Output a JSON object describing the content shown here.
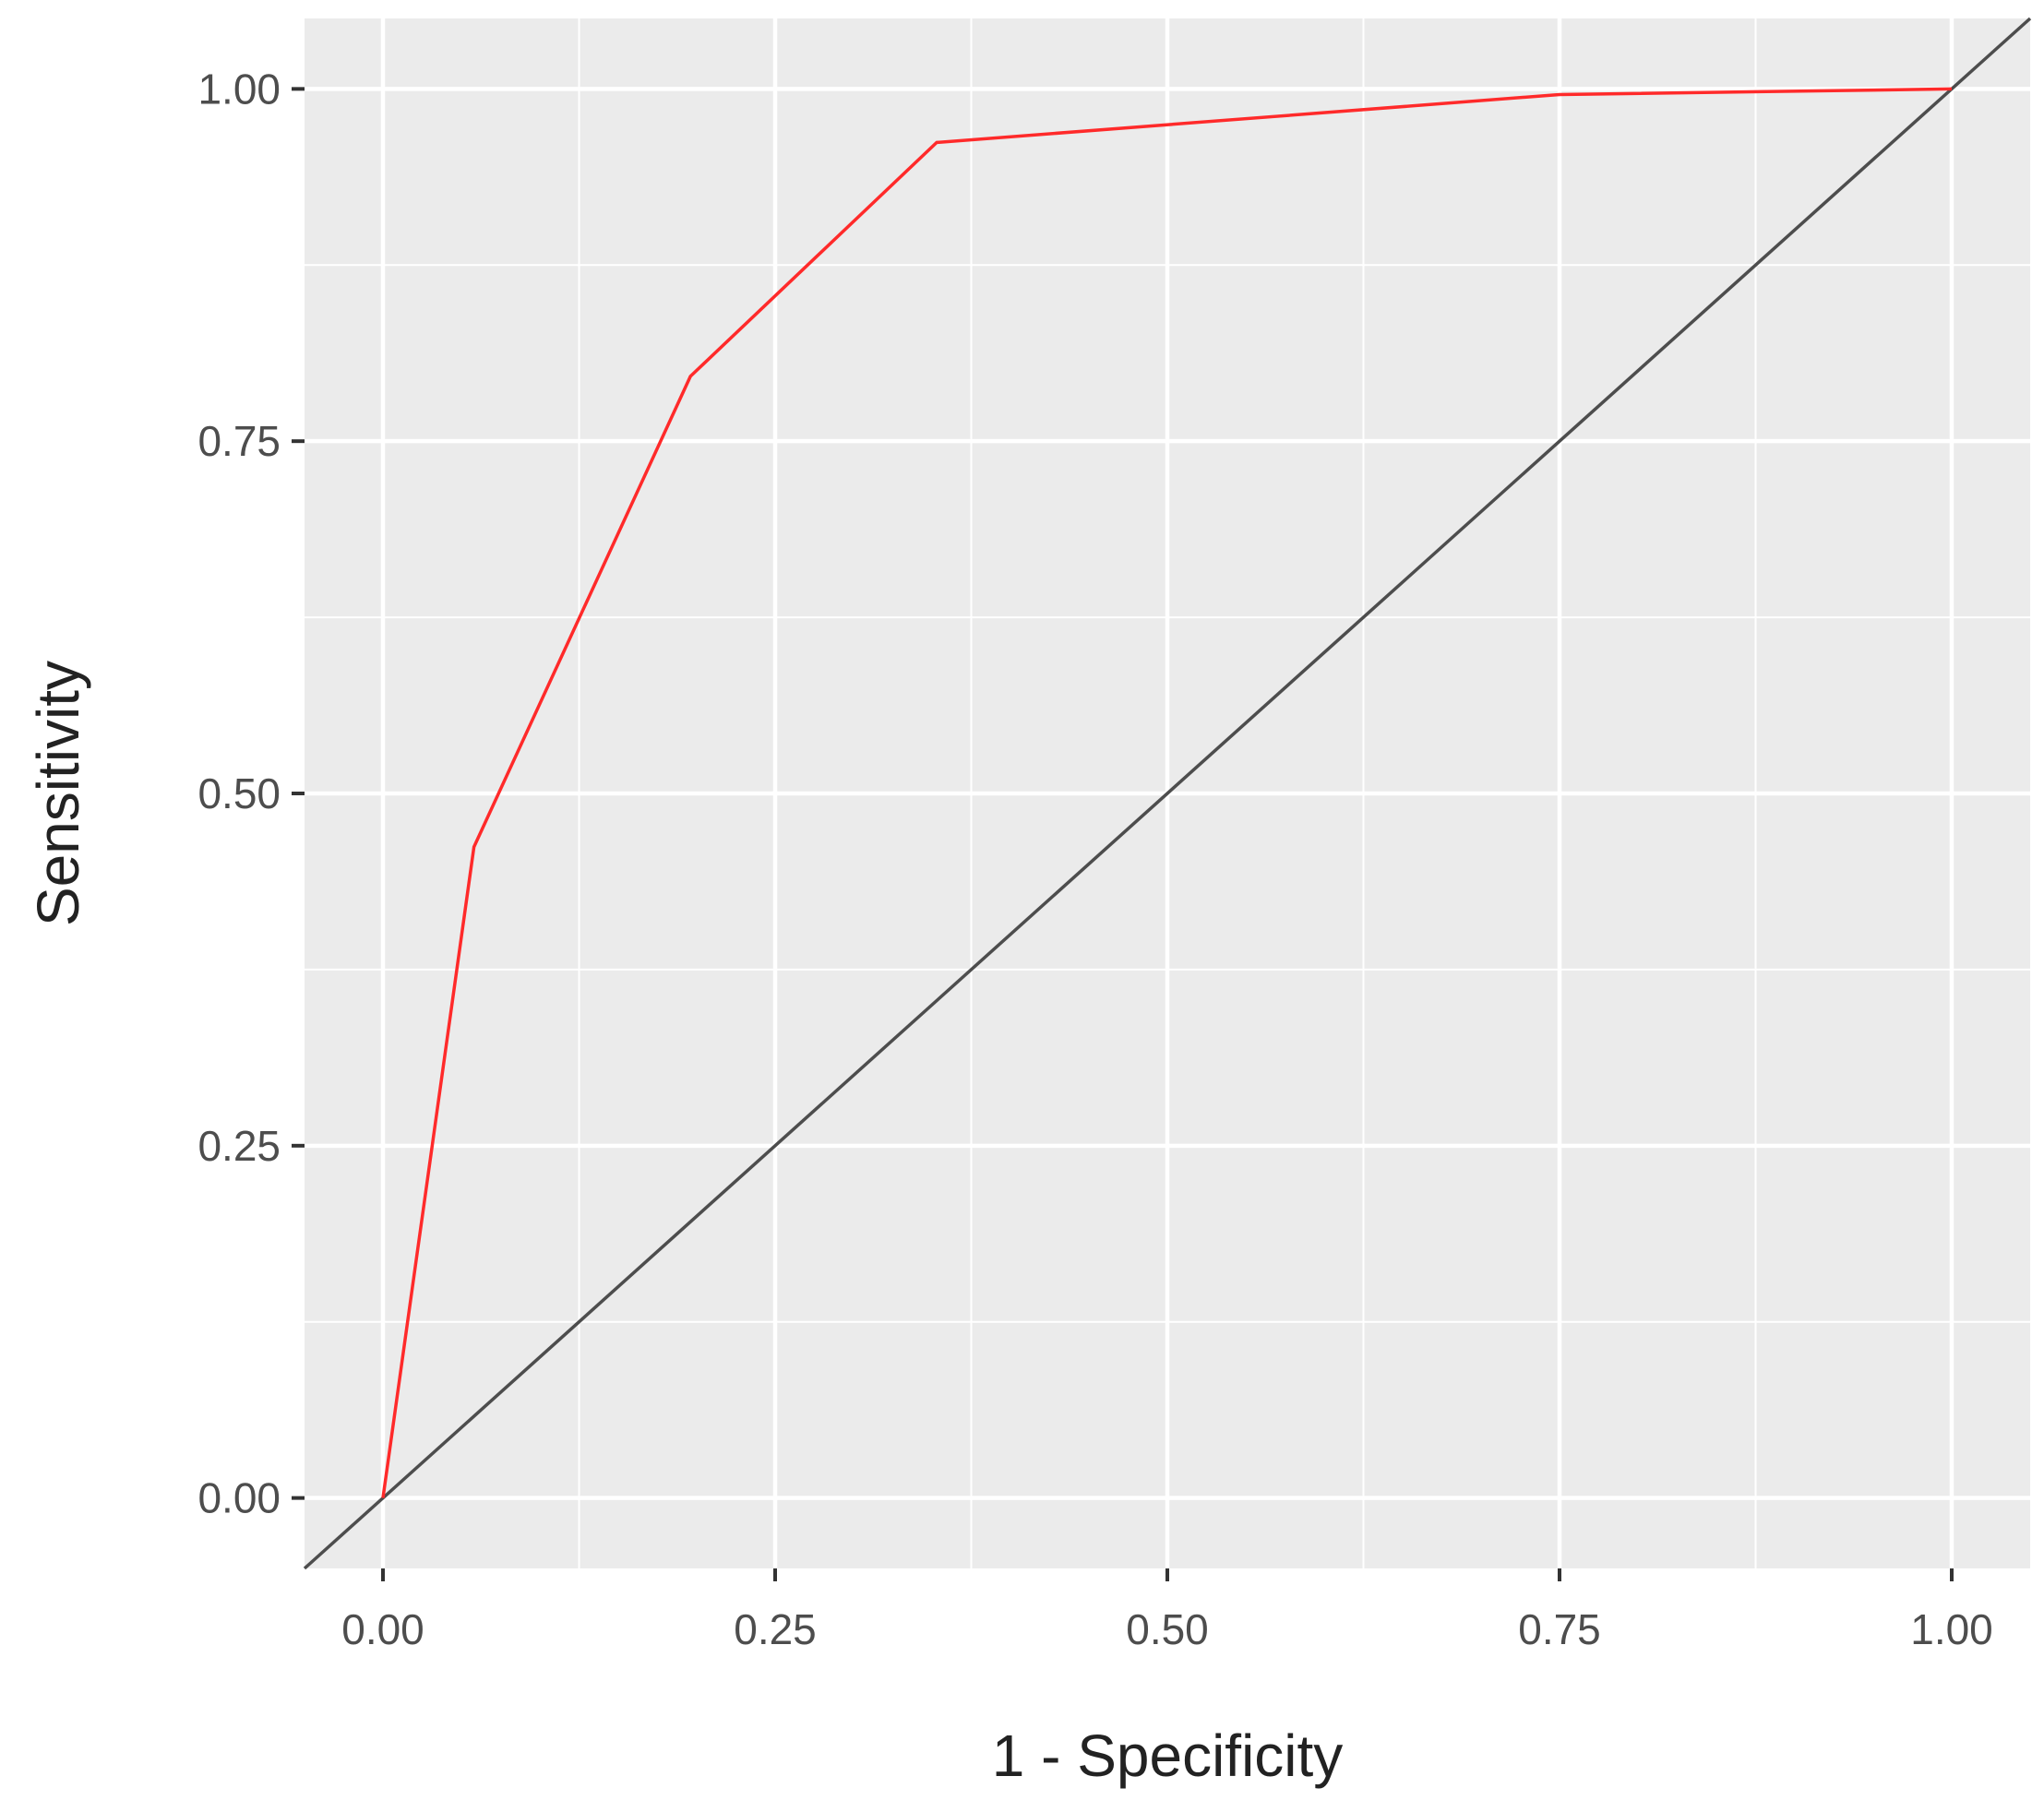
{
  "chart_data": {
    "type": "line",
    "title": "",
    "xlabel": "1 - Specificity",
    "ylabel": "Sensitivity",
    "xlim": [
      -0.05,
      1.05
    ],
    "ylim": [
      -0.05,
      1.05
    ],
    "x_ticks": [
      0,
      0.25,
      0.5,
      0.75,
      1
    ],
    "x_tick_labels": [
      "0.00",
      "0.25",
      "0.50",
      "0.75",
      "1.00"
    ],
    "y_ticks": [
      0,
      0.25,
      0.5,
      0.75,
      1
    ],
    "y_tick_labels": [
      "0.00",
      "0.25",
      "0.50",
      "0.75",
      "1.00"
    ],
    "grid": true,
    "legend": "none",
    "series": [
      {
        "color": "#ff2a2a",
        "x": [
          0,
          0.058,
          0.196,
          0.353,
          0.75,
          1.0
        ],
        "y": [
          0,
          0.462,
          0.796,
          0.962,
          0.996,
          1.0
        ]
      },
      {
        "color": "#4d4d4d",
        "x": [
          -0.05,
          1.05
        ],
        "y": [
          -0.05,
          1.05
        ]
      }
    ]
  }
}
